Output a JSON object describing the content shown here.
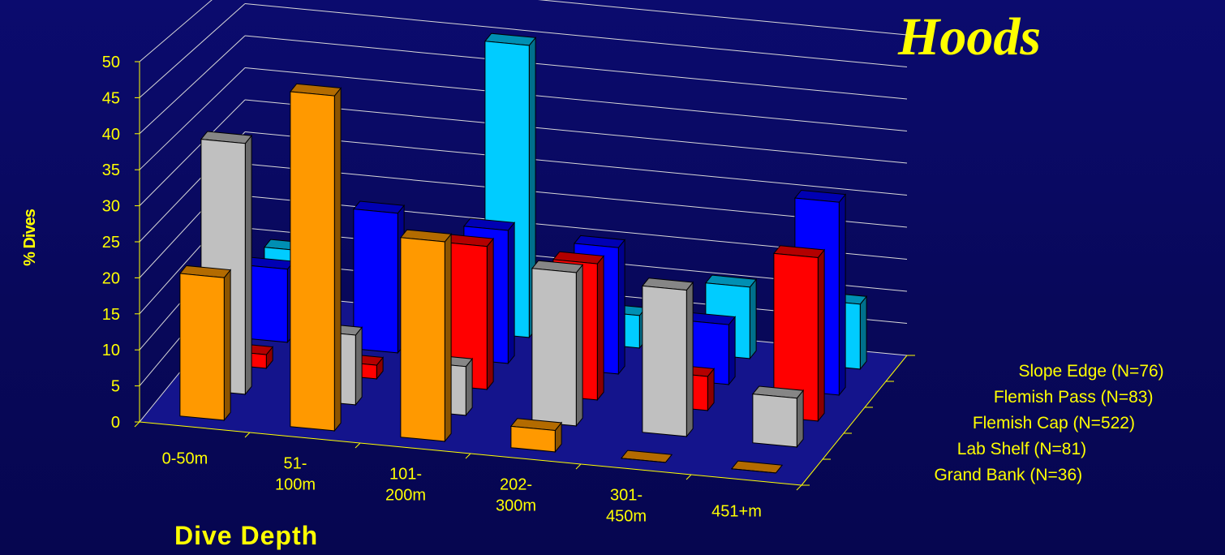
{
  "chart_data": {
    "type": "bar",
    "subtype": "3d-grouped",
    "title": "Hoods",
    "xlabel": "Dive Depth",
    "ylabel": "% Dives",
    "ylim": [
      0,
      50
    ],
    "yticks": [
      0,
      5,
      10,
      15,
      20,
      25,
      30,
      35,
      40,
      45,
      50
    ],
    "grid": true,
    "categories": [
      "0-50m",
      "51-\n100m",
      "101-\n200m",
      "202-\n300m",
      "301-\n450m",
      "451+m"
    ],
    "series": [
      {
        "name": "Grand Bank (N=36)",
        "color": "#ff9900",
        "values": [
          20,
          47,
          28,
          3,
          0,
          0
        ]
      },
      {
        "name": "Lab Shelf (N=81)",
        "color": "#c0c0c0",
        "values": [
          36,
          10,
          7,
          22,
          21,
          7
        ]
      },
      {
        "name": "Flemish Cap (N=522)",
        "color": "#ff0000",
        "values": [
          2,
          2,
          21,
          20,
          5,
          24
        ]
      },
      {
        "name": "Flemish Pass (N=83)",
        "color": "#0000ff",
        "values": [
          11,
          21,
          20,
          19,
          9,
          29
        ]
      },
      {
        "name": "Slope Edge (N=76)",
        "color": "#00ccff",
        "values": [
          10,
          12,
          45,
          5,
          11,
          10
        ]
      }
    ],
    "legend": "right"
  }
}
